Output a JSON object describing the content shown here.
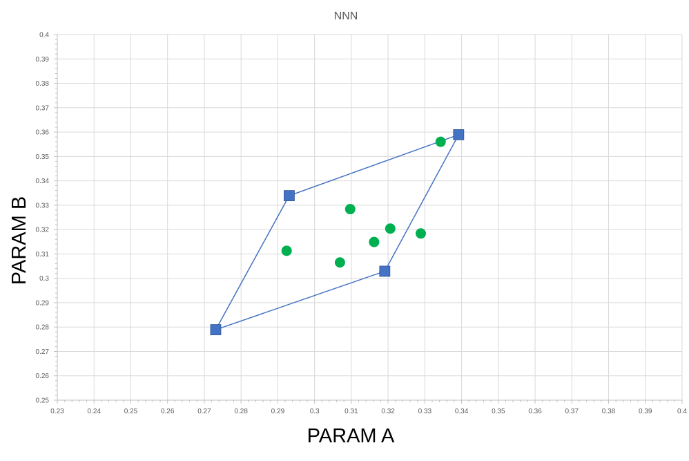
{
  "chart_data": {
    "type": "scatter",
    "title": "NNN",
    "xlabel": "PARAM A",
    "ylabel": "PARAM B",
    "xlim": [
      0.23,
      0.4
    ],
    "ylim": [
      0.25,
      0.4
    ],
    "x_major_step": 0.01,
    "y_major_step": 0.01,
    "x_ticks": [
      "0.23",
      "0.24",
      "0.25",
      "0.26",
      "0.27",
      "0.28",
      "0.29",
      "0.3",
      "0.31",
      "0.32",
      "0.33",
      "0.34",
      "0.35",
      "0.36",
      "0.37",
      "0.38",
      "0.39",
      "0.4"
    ],
    "y_ticks": [
      "0.25",
      "0.26",
      "0.27",
      "0.28",
      "0.29",
      "0.3",
      "0.31",
      "0.32",
      "0.33",
      "0.34",
      "0.35",
      "0.36",
      "0.37",
      "0.38",
      "0.39",
      "0.4"
    ],
    "grid": true,
    "legend": "none",
    "series": [
      {
        "marker": "square",
        "line": true,
        "color": "#4472c4",
        "points": [
          [
            0.2731,
            0.2789
          ],
          [
            0.2931,
            0.3339
          ],
          [
            0.3392,
            0.3589
          ],
          [
            0.3191,
            0.3029
          ],
          [
            0.2731,
            0.2789
          ]
        ]
      },
      {
        "marker": "circle",
        "line": false,
        "color": "#00b050",
        "points": [
          [
            0.2924,
            0.3113
          ],
          [
            0.3069,
            0.3065
          ],
          [
            0.3097,
            0.3284
          ],
          [
            0.3162,
            0.3149
          ],
          [
            0.3206,
            0.3204
          ],
          [
            0.3289,
            0.3184
          ],
          [
            0.3343,
            0.356
          ]
        ]
      }
    ]
  }
}
